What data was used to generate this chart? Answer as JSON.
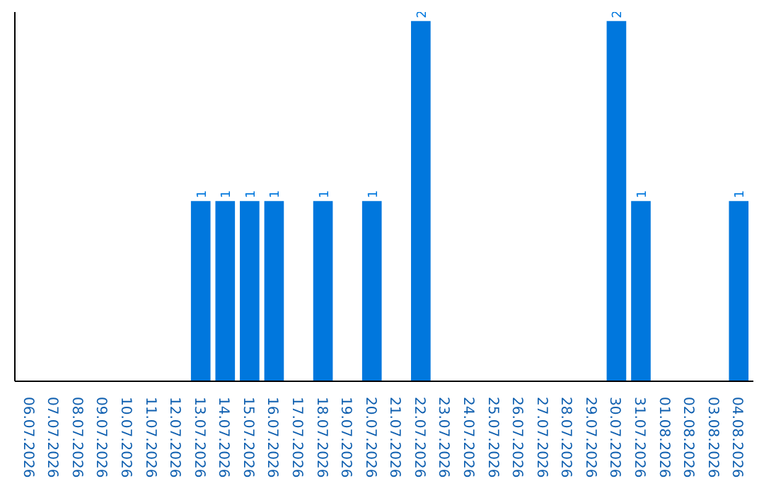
{
  "chart_data": {
    "type": "bar",
    "categories": [
      "06.07.2026",
      "07.07.2026",
      "08.07.2026",
      "09.07.2026",
      "10.07.2026",
      "11.07.2026",
      "12.07.2026",
      "13.07.2026",
      "14.07.2026",
      "15.07.2026",
      "16.07.2026",
      "17.07.2026",
      "18.07.2026",
      "19.07.2026",
      "20.07.2026",
      "21.07.2026",
      "22.07.2026",
      "23.07.2026",
      "24.07.2026",
      "25.07.2026",
      "26.07.2026",
      "27.07.2026",
      "28.07.2026",
      "29.07.2026",
      "30.07.2026",
      "31.07.2026",
      "01.08.2026",
      "02.08.2026",
      "03.08.2026",
      "04.08.2026"
    ],
    "values": [
      0,
      0,
      0,
      0,
      0,
      0,
      0,
      1,
      1,
      1,
      1,
      0,
      1,
      0,
      1,
      0,
      2,
      0,
      0,
      0,
      0,
      0,
      0,
      0,
      2,
      1,
      0,
      0,
      0,
      1
    ],
    "value_labels": [
      null,
      null,
      null,
      null,
      null,
      null,
      null,
      "1",
      "1",
      "1",
      "1",
      null,
      "1",
      null,
      "1",
      null,
      "2",
      null,
      null,
      null,
      null,
      null,
      null,
      null,
      "2",
      "1",
      null,
      null,
      null,
      "1"
    ],
    "color": "#0077dd",
    "grid": false
  }
}
